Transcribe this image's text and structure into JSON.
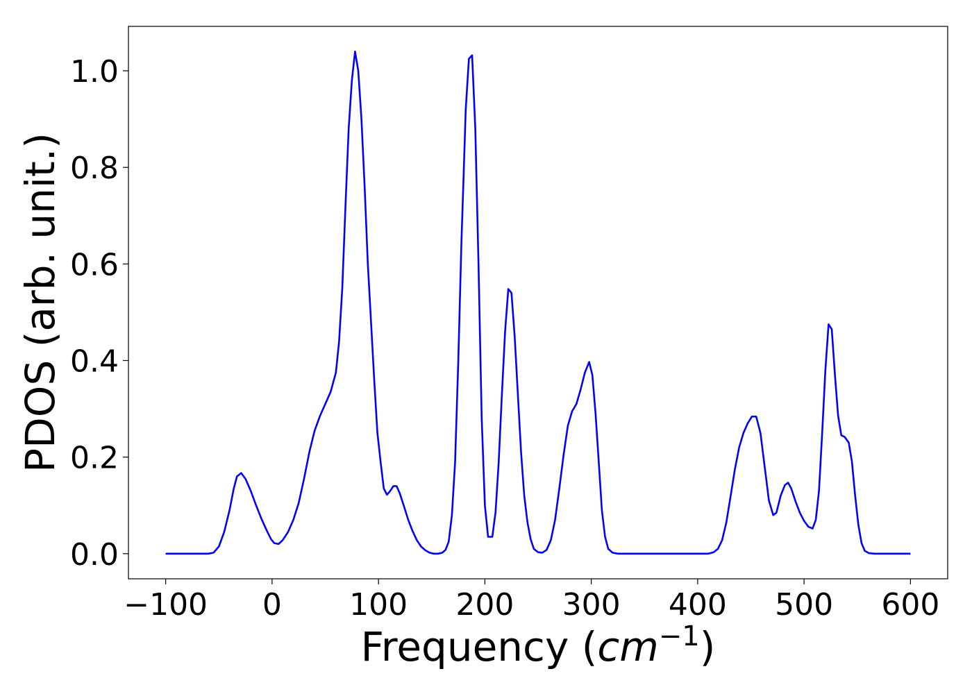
{
  "chart_data": {
    "type": "line",
    "title": "",
    "xlabel": {
      "prefix": "Frequency (",
      "var": "cm",
      "exponent": "−1",
      "suffix": ")"
    },
    "ylabel": "PDOS (arb. unit.)",
    "xlim": [
      -135,
      635
    ],
    "ylim": [
      -0.052,
      1.092
    ],
    "xticks": [
      -100,
      0,
      100,
      200,
      300,
      400,
      500,
      600
    ],
    "xtick_labels": [
      "−100",
      "0",
      "100",
      "200",
      "300",
      "400",
      "500",
      "600"
    ],
    "yticks": [
      0.0,
      0.2,
      0.4,
      0.6,
      0.8,
      1.0
    ],
    "ytick_labels": [
      "0.0",
      "0.2",
      "0.4",
      "0.6",
      "0.8",
      "1.0"
    ],
    "grid": false,
    "legend": "none",
    "series": [
      {
        "color": "#0000ff",
        "points": [
          [
            -100,
            0.0
          ],
          [
            -90,
            0.0
          ],
          [
            -80,
            0.0
          ],
          [
            -70,
            0.0
          ],
          [
            -60,
            0.0
          ],
          [
            -55,
            0.002
          ],
          [
            -50,
            0.015
          ],
          [
            -45,
            0.045
          ],
          [
            -40,
            0.09
          ],
          [
            -36,
            0.135
          ],
          [
            -33,
            0.16
          ],
          [
            -29,
            0.167
          ],
          [
            -25,
            0.155
          ],
          [
            -20,
            0.13
          ],
          [
            -15,
            0.1
          ],
          [
            -10,
            0.072
          ],
          [
            -5,
            0.048
          ],
          [
            -1,
            0.03
          ],
          [
            2,
            0.022
          ],
          [
            6,
            0.02
          ],
          [
            10,
            0.028
          ],
          [
            15,
            0.045
          ],
          [
            20,
            0.07
          ],
          [
            25,
            0.105
          ],
          [
            30,
            0.155
          ],
          [
            35,
            0.21
          ],
          [
            40,
            0.255
          ],
          [
            45,
            0.285
          ],
          [
            50,
            0.31
          ],
          [
            55,
            0.335
          ],
          [
            60,
            0.375
          ],
          [
            63,
            0.44
          ],
          [
            66,
            0.55
          ],
          [
            69,
            0.72
          ],
          [
            72,
            0.88
          ],
          [
            75,
            0.98
          ],
          [
            78,
            1.04
          ],
          [
            81,
            1.0
          ],
          [
            84,
            0.9
          ],
          [
            87,
            0.76
          ],
          [
            90,
            0.6
          ],
          [
            93,
            0.48
          ],
          [
            96,
            0.36
          ],
          [
            99,
            0.25
          ],
          [
            102,
            0.19
          ],
          [
            105,
            0.135
          ],
          [
            108,
            0.122
          ],
          [
            111,
            0.13
          ],
          [
            114,
            0.14
          ],
          [
            117,
            0.14
          ],
          [
            120,
            0.125
          ],
          [
            124,
            0.098
          ],
          [
            128,
            0.07
          ],
          [
            132,
            0.047
          ],
          [
            136,
            0.028
          ],
          [
            140,
            0.015
          ],
          [
            144,
            0.007
          ],
          [
            148,
            0.002
          ],
          [
            152,
            0.0
          ],
          [
            156,
            0.0
          ],
          [
            160,
            0.002
          ],
          [
            163,
            0.008
          ],
          [
            166,
            0.025
          ],
          [
            169,
            0.08
          ],
          [
            172,
            0.19
          ],
          [
            175,
            0.4
          ],
          [
            178,
            0.65
          ],
          [
            180,
            0.78
          ],
          [
            182,
            0.92
          ],
          [
            185,
            1.025
          ],
          [
            188,
            1.032
          ],
          [
            191,
            0.88
          ],
          [
            194,
            0.6
          ],
          [
            197,
            0.28
          ],
          [
            200,
            0.1
          ],
          [
            203,
            0.035
          ],
          [
            207,
            0.035
          ],
          [
            210,
            0.085
          ],
          [
            213,
            0.19
          ],
          [
            216,
            0.33
          ],
          [
            219,
            0.46
          ],
          [
            222,
            0.548
          ],
          [
            225,
            0.54
          ],
          [
            228,
            0.45
          ],
          [
            231,
            0.33
          ],
          [
            234,
            0.21
          ],
          [
            237,
            0.12
          ],
          [
            240,
            0.065
          ],
          [
            243,
            0.03
          ],
          [
            246,
            0.01
          ],
          [
            250,
            0.003
          ],
          [
            254,
            0.002
          ],
          [
            258,
            0.008
          ],
          [
            262,
            0.028
          ],
          [
            266,
            0.07
          ],
          [
            270,
            0.135
          ],
          [
            274,
            0.205
          ],
          [
            278,
            0.265
          ],
          [
            282,
            0.295
          ],
          [
            286,
            0.31
          ],
          [
            290,
            0.34
          ],
          [
            294,
            0.375
          ],
          [
            298,
            0.397
          ],
          [
            301,
            0.37
          ],
          [
            304,
            0.29
          ],
          [
            307,
            0.19
          ],
          [
            310,
            0.09
          ],
          [
            313,
            0.035
          ],
          [
            316,
            0.01
          ],
          [
            320,
            0.002
          ],
          [
            325,
            0.0
          ],
          [
            340,
            0.0
          ],
          [
            360,
            0.0
          ],
          [
            380,
            0.0
          ],
          [
            400,
            0.0
          ],
          [
            410,
            0.0
          ],
          [
            415,
            0.003
          ],
          [
            419,
            0.01
          ],
          [
            423,
            0.028
          ],
          [
            427,
            0.065
          ],
          [
            431,
            0.12
          ],
          [
            435,
            0.175
          ],
          [
            439,
            0.22
          ],
          [
            443,
            0.25
          ],
          [
            447,
            0.27
          ],
          [
            451,
            0.284
          ],
          [
            455,
            0.284
          ],
          [
            459,
            0.25
          ],
          [
            463,
            0.18
          ],
          [
            467,
            0.11
          ],
          [
            471,
            0.08
          ],
          [
            474,
            0.085
          ],
          [
            478,
            0.12
          ],
          [
            482,
            0.142
          ],
          [
            485,
            0.147
          ],
          [
            488,
            0.135
          ],
          [
            492,
            0.108
          ],
          [
            496,
            0.085
          ],
          [
            500,
            0.068
          ],
          [
            504,
            0.056
          ],
          [
            508,
            0.052
          ],
          [
            511,
            0.07
          ],
          [
            514,
            0.13
          ],
          [
            517,
            0.25
          ],
          [
            520,
            0.38
          ],
          [
            523,
            0.475
          ],
          [
            526,
            0.465
          ],
          [
            529,
            0.37
          ],
          [
            532,
            0.285
          ],
          [
            535,
            0.245
          ],
          [
            538,
            0.242
          ],
          [
            542,
            0.23
          ],
          [
            545,
            0.19
          ],
          [
            548,
            0.12
          ],
          [
            551,
            0.06
          ],
          [
            554,
            0.022
          ],
          [
            557,
            0.006
          ],
          [
            561,
            0.001
          ],
          [
            566,
            0.0
          ],
          [
            575,
            0.0
          ],
          [
            590,
            0.0
          ],
          [
            600,
            0.0
          ]
        ]
      }
    ]
  }
}
